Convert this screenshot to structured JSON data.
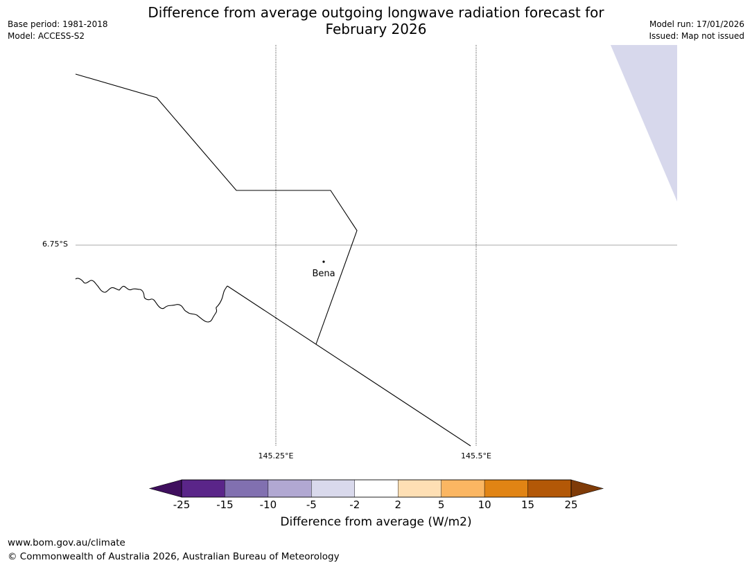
{
  "title": {
    "line1": "Difference from average outgoing longwave radiation forecast for",
    "line2": "February 2026"
  },
  "meta": {
    "base_period": "Base period: 1981-2018",
    "model": "Model: ACCESS-S2",
    "model_run": "Model run: 17/01/2026",
    "issued": "Issued: Map not issued"
  },
  "map": {
    "lat_gridline_label": "6.75°S",
    "lon_gridline_labels": [
      "145.25°E",
      "145.5°E"
    ],
    "place": {
      "name": "Bena"
    },
    "shaded_region_category": "-5 to -2"
  },
  "colorbar": {
    "title": "Difference from average (W/m2)",
    "ticks": [
      "-25",
      "-15",
      "-10",
      "-5",
      "-2",
      "2",
      "5",
      "10",
      "15",
      "25"
    ],
    "colors": [
      "#3f0f5e",
      "#5a2589",
      "#8170b0",
      "#b1a8d2",
      "#d9d9ec",
      "#ffffff",
      "#fedfb4",
      "#fbb662",
      "#e18414",
      "#b35807",
      "#7f3b08"
    ]
  },
  "footer": {
    "url": "www.bom.gov.au/climate",
    "copyright": "© Commonwealth of Australia 2026, Australian Bureau of Meteorology"
  }
}
